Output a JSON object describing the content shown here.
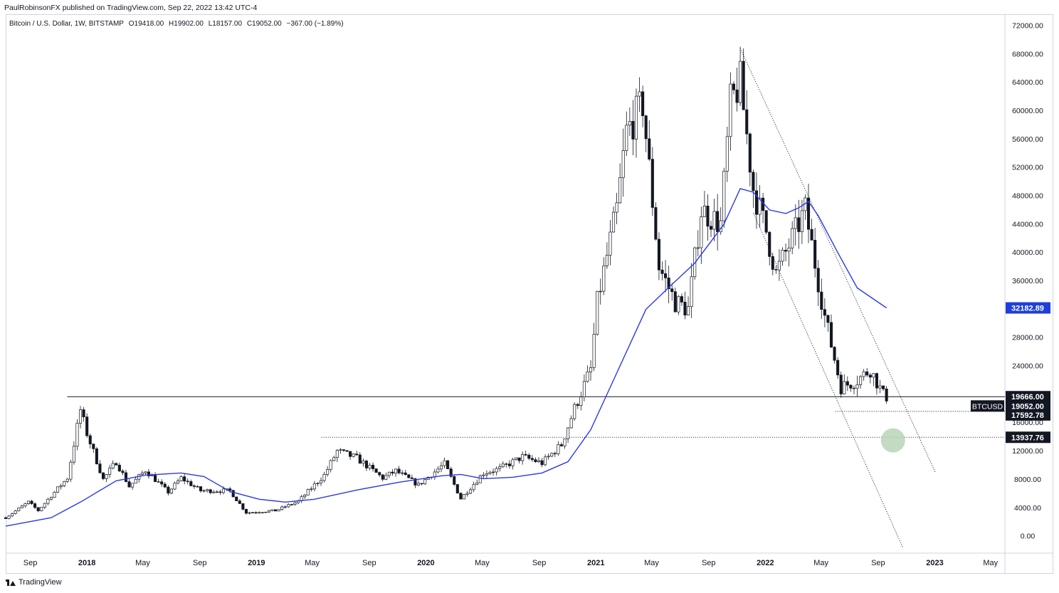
{
  "header": {
    "published": "PaulRobinsonFX published on TradingView.com, Sep 22, 2022 13:42 UTC-4"
  },
  "legend": {
    "symbol": "Bitcoin / U.S. Dollar, 1W, BITSTAMP",
    "open": "O19418.00",
    "high": "H19902.00",
    "low": "L18157.00",
    "close": "C19052.00",
    "change": "−367.00 (−1.89%)"
  },
  "footer": {
    "brand": "TradingView"
  },
  "chart_data": {
    "type": "candlestick",
    "title": "Bitcoin / U.S. Dollar, 1W, BITSTAMP",
    "ylim": [
      -2400,
      73600
    ],
    "y_ticks": [
      "0.00",
      "4000.00",
      "8000.00",
      "12000.00",
      "16000.00",
      "20000.00",
      "24000.00",
      "28000.00",
      "32000.00",
      "36000.00",
      "40000.00",
      "44000.00",
      "48000.00",
      "52000.00",
      "56000.00",
      "60000.00",
      "64000.00",
      "68000.00",
      "72000.00"
    ],
    "x_ticks": [
      {
        "label": "Sep",
        "date": "2017-09-01"
      },
      {
        "label": "2018",
        "date": "2018-01-01"
      },
      {
        "label": "May",
        "date": "2018-05-01"
      },
      {
        "label": "Sep",
        "date": "2018-09-01"
      },
      {
        "label": "2019",
        "date": "2019-01-01"
      },
      {
        "label": "May",
        "date": "2019-05-01"
      },
      {
        "label": "Sep",
        "date": "2019-09-01"
      },
      {
        "label": "2020",
        "date": "2020-01-01"
      },
      {
        "label": "May",
        "date": "2020-05-01"
      },
      {
        "label": "Sep",
        "date": "2020-09-01"
      },
      {
        "label": "2021",
        "date": "2021-01-01"
      },
      {
        "label": "May",
        "date": "2021-05-01"
      },
      {
        "label": "Sep",
        "date": "2021-09-01"
      },
      {
        "label": "2022",
        "date": "2022-01-01"
      },
      {
        "label": "May",
        "date": "2022-05-01"
      },
      {
        "label": "Sep",
        "date": "2022-09-01"
      },
      {
        "label": "2023",
        "date": "2023-01-01"
      },
      {
        "label": "May",
        "date": "2023-05-01"
      }
    ],
    "price_path": [
      {
        "date": "2017-07-10",
        "price": 2600
      },
      {
        "date": "2017-08-28",
        "price": 4800
      },
      {
        "date": "2017-09-18",
        "price": 3600
      },
      {
        "date": "2017-10-16",
        "price": 5700
      },
      {
        "date": "2017-11-20",
        "price": 8200
      },
      {
        "date": "2017-12-18",
        "price": 17800
      },
      {
        "date": "2018-01-01",
        "price": 14500
      },
      {
        "date": "2018-02-05",
        "price": 8000
      },
      {
        "date": "2018-03-05",
        "price": 10500
      },
      {
        "date": "2018-04-02",
        "price": 7000
      },
      {
        "date": "2018-05-07",
        "price": 9300
      },
      {
        "date": "2018-06-25",
        "price": 6200
      },
      {
        "date": "2018-07-23",
        "price": 8200
      },
      {
        "date": "2018-09-03",
        "price": 6400
      },
      {
        "date": "2018-11-05",
        "price": 6400
      },
      {
        "date": "2018-12-10",
        "price": 3300
      },
      {
        "date": "2019-02-11",
        "price": 3600
      },
      {
        "date": "2019-04-01",
        "price": 4900
      },
      {
        "date": "2019-05-27",
        "price": 8600
      },
      {
        "date": "2019-06-24",
        "price": 12000
      },
      {
        "date": "2019-08-05",
        "price": 11000
      },
      {
        "date": "2019-09-30",
        "price": 8200
      },
      {
        "date": "2019-10-28",
        "price": 9200
      },
      {
        "date": "2019-12-16",
        "price": 7200
      },
      {
        "date": "2020-02-10",
        "price": 10200
      },
      {
        "date": "2020-03-16",
        "price": 5300
      },
      {
        "date": "2020-05-04",
        "price": 8900
      },
      {
        "date": "2020-06-08",
        "price": 9500
      },
      {
        "date": "2020-07-27",
        "price": 11200
      },
      {
        "date": "2020-09-07",
        "price": 10300
      },
      {
        "date": "2020-10-19",
        "price": 12900
      },
      {
        "date": "2020-11-16",
        "price": 18000
      },
      {
        "date": "2020-12-21",
        "price": 23500
      },
      {
        "date": "2021-01-04",
        "price": 33000
      },
      {
        "date": "2021-02-15",
        "price": 46000
      },
      {
        "date": "2021-03-08",
        "price": 57000
      },
      {
        "date": "2021-04-12",
        "price": 61000
      },
      {
        "date": "2021-05-17",
        "price": 38000
      },
      {
        "date": "2021-06-21",
        "price": 33000
      },
      {
        "date": "2021-07-19",
        "price": 32000
      },
      {
        "date": "2021-08-16",
        "price": 46000
      },
      {
        "date": "2021-09-27",
        "price": 44000
      },
      {
        "date": "2021-10-18",
        "price": 61000
      },
      {
        "date": "2021-11-08",
        "price": 64000
      },
      {
        "date": "2021-12-06",
        "price": 49000
      },
      {
        "date": "2022-01-03",
        "price": 43000
      },
      {
        "date": "2022-01-24",
        "price": 37000
      },
      {
        "date": "2022-03-28",
        "price": 46000
      },
      {
        "date": "2022-05-09",
        "price": 31000
      },
      {
        "date": "2022-06-13",
        "price": 21000
      },
      {
        "date": "2022-07-18",
        "price": 22000
      },
      {
        "date": "2022-08-15",
        "price": 23500
      },
      {
        "date": "2022-09-19",
        "price": 19052
      }
    ],
    "moving_average": [
      {
        "date": "2017-07-10",
        "price": 1400
      },
      {
        "date": "2017-10-16",
        "price": 2600
      },
      {
        "date": "2017-12-18",
        "price": 4800
      },
      {
        "date": "2018-03-05",
        "price": 7800
      },
      {
        "date": "2018-05-07",
        "price": 8600
      },
      {
        "date": "2018-07-23",
        "price": 8900
      },
      {
        "date": "2018-09-10",
        "price": 8400
      },
      {
        "date": "2018-11-05",
        "price": 6300
      },
      {
        "date": "2019-01-07",
        "price": 5200
      },
      {
        "date": "2019-03-04",
        "price": 4800
      },
      {
        "date": "2019-05-06",
        "price": 5200
      },
      {
        "date": "2019-08-05",
        "price": 6500
      },
      {
        "date": "2019-11-04",
        "price": 7600
      },
      {
        "date": "2020-02-03",
        "price": 8500
      },
      {
        "date": "2020-03-16",
        "price": 8700
      },
      {
        "date": "2020-05-04",
        "price": 8100
      },
      {
        "date": "2020-07-06",
        "price": 8300
      },
      {
        "date": "2020-09-07",
        "price": 8900
      },
      {
        "date": "2020-11-02",
        "price": 10500
      },
      {
        "date": "2020-12-21",
        "price": 15000
      },
      {
        "date": "2021-02-15",
        "price": 23000
      },
      {
        "date": "2021-04-19",
        "price": 32000
      },
      {
        "date": "2021-06-14",
        "price": 35500
      },
      {
        "date": "2021-08-02",
        "price": 38500
      },
      {
        "date": "2021-10-04",
        "price": 44000
      },
      {
        "date": "2021-11-08",
        "price": 49000
      },
      {
        "date": "2021-12-06",
        "price": 48500
      },
      {
        "date": "2022-01-10",
        "price": 46000
      },
      {
        "date": "2022-02-14",
        "price": 45500
      },
      {
        "date": "2022-03-14",
        "price": 46300
      },
      {
        "date": "2022-04-04",
        "price": 47200
      },
      {
        "date": "2022-04-25",
        "price": 45200
      },
      {
        "date": "2022-06-06",
        "price": 40000
      },
      {
        "date": "2022-07-18",
        "price": 35000
      },
      {
        "date": "2022-09-19",
        "price": 32182.89
      }
    ],
    "moving_average_last": "32182.89",
    "resistance_level": {
      "price": 19666,
      "start_date": "2017-12-11",
      "label": "19666.00"
    },
    "support_level": {
      "price": 17592.78,
      "start_date": "2022-06-13",
      "label": "17592.78"
    },
    "target_level": {
      "price": 13937.76,
      "start_date": "2019-06-24",
      "label": "13937.76"
    },
    "current_price": {
      "price": 19052,
      "label": "19052.00",
      "symbol_label": "BTCUSD"
    },
    "channel_upper": [
      {
        "date": "2021-11-08",
        "price": 68800
      },
      {
        "date": "2023-01-02",
        "price": 9000
      }
    ],
    "channel_lower": [
      {
        "date": "2021-12-06",
        "price": 45600
      },
      {
        "date": "2022-10-24",
        "price": -1600
      }
    ],
    "target_marker": {
      "date": "2022-10-03",
      "price": 13500
    },
    "colors": {
      "candle": "#131722",
      "moving_average": "#2b3ae0",
      "ma_label_bg": "#1e3fd8",
      "level_label_bg": "#131722",
      "target_marker": "#b8d4b8"
    }
  }
}
